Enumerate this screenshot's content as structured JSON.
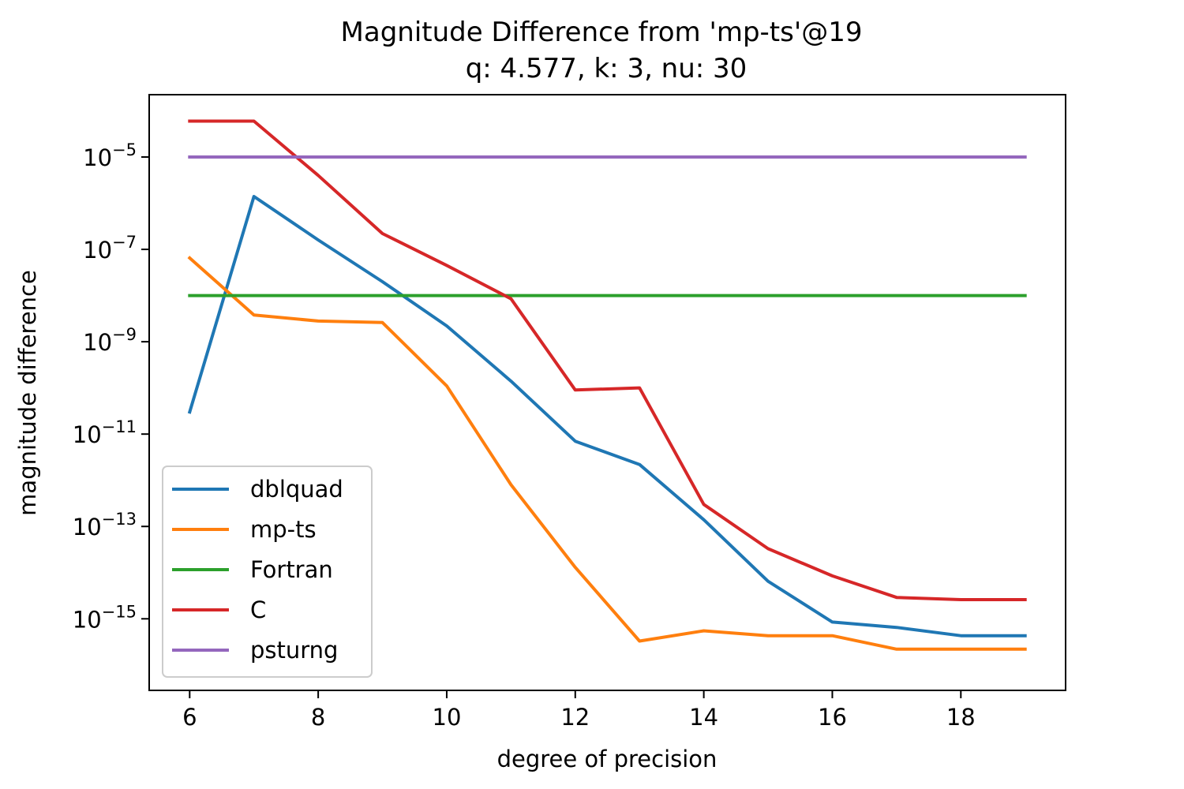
{
  "chart_data": {
    "type": "line",
    "title": "Magnitude Difference from 'mp-ts'@19",
    "subtitle": "q: 4.577, k: 3, nu: 30",
    "xlabel": "degree of precision",
    "ylabel": "magnitude difference",
    "yscale": "log",
    "xlim": [
      5.37,
      19.63
    ],
    "ylim_log10": [
      -16.55,
      -3.65
    ],
    "x_ticks": [
      6,
      8,
      10,
      12,
      14,
      16,
      18
    ],
    "y_ticks_exp": [
      -15,
      -13,
      -11,
      -9,
      -7,
      -5
    ],
    "y_tick_base": "10",
    "legend_position": "lower left",
    "grid": false,
    "x": [
      6,
      7,
      8,
      9,
      10,
      11,
      12,
      13,
      14,
      15,
      16,
      17,
      18,
      19
    ],
    "series": [
      {
        "name": "dblquad",
        "color": "#1f77b4",
        "values": [
          3e-11,
          1.4e-06,
          1.6e-07,
          2e-08,
          2.2e-09,
          1.4e-10,
          7e-12,
          2.2e-12,
          1.4e-13,
          6.5e-15,
          8.5e-16,
          6.5e-16,
          4.3e-16,
          4.3e-16
        ]
      },
      {
        "name": "mp-ts",
        "color": "#ff7f0e",
        "values": [
          6.5e-08,
          3.8e-09,
          2.8e-09,
          2.6e-09,
          1.1e-10,
          8e-13,
          1.3e-14,
          3.3e-16,
          5.5e-16,
          4.3e-16,
          4.3e-16,
          2.2e-16,
          2.2e-16,
          2.2e-16
        ]
      },
      {
        "name": "Fortran",
        "color": "#2ca02c",
        "values": [
          1e-08,
          1e-08,
          1e-08,
          1e-08,
          1e-08,
          1e-08,
          1e-08,
          1e-08,
          1e-08,
          1e-08,
          1e-08,
          1e-08,
          1e-08,
          1e-08
        ]
      },
      {
        "name": "C",
        "color": "#d62728",
        "values": [
          6e-05,
          6e-05,
          4e-06,
          2.2e-07,
          4.5e-08,
          8.5e-09,
          9e-11,
          1e-10,
          3e-13,
          3.3e-14,
          8.5e-15,
          2.9e-15,
          2.6e-15,
          2.6e-15
        ]
      },
      {
        "name": "psturng",
        "color": "#9467bd",
        "values": [
          1e-05,
          1e-05,
          1e-05,
          1e-05,
          1e-05,
          1e-05,
          1e-05,
          1e-05,
          1e-05,
          1e-05,
          1e-05,
          1e-05,
          1e-05,
          1e-05
        ]
      }
    ]
  }
}
